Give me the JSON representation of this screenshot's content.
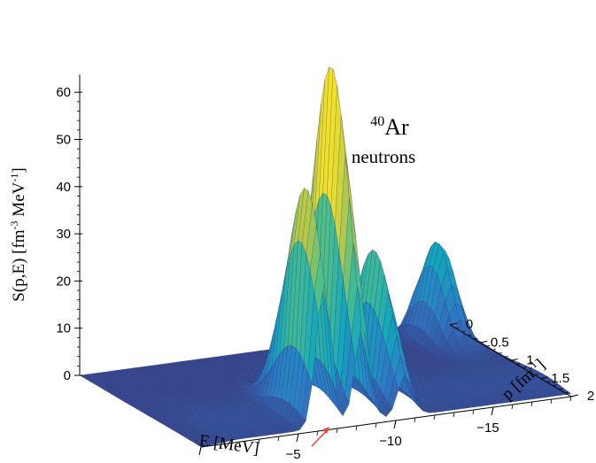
{
  "chart_data": {
    "type": "surface",
    "annotation": {
      "superscript": "40",
      "element": "Ar",
      "subtitle": "neutrons"
    },
    "xlabel": "E [MeV]",
    "ylabel": "p [fm",
    "ylabel_sup": "-1",
    "ylabel_end": "]",
    "zlabel": "S(p,E) [fm",
    "zlabel_sup1": "-3",
    "zlabel_mid": " MeV",
    "zlabel_sup2": "-1",
    "zlabel_end": "]",
    "E_ticks": [
      "0",
      "−5",
      "−10",
      "−15"
    ],
    "p_ticks": [
      "0",
      "0.5",
      "1",
      "1.5",
      "2"
    ],
    "z_ticks": [
      "0",
      "10",
      "20",
      "30",
      "40",
      "50",
      "60"
    ],
    "E_range": [
      0,
      -19
    ],
    "p_range": [
      0,
      2
    ],
    "z_range": [
      0,
      60
    ],
    "peaks": [
      {
        "E": -6.3,
        "p": 1.7,
        "height": 48
      },
      {
        "E": -8.3,
        "p": 1.5,
        "height": 72
      },
      {
        "E": -10.5,
        "p": 1.5,
        "height": 31
      },
      {
        "E": -17.5,
        "p": 0.3,
        "height": 21
      }
    ],
    "marker": {
      "E": -6.3,
      "color": "#e8483a"
    },
    "colormap": [
      "#36468f",
      "#2f78c4",
      "#15a6bd",
      "#4cbe8c",
      "#b7c94a",
      "#f0e02c"
    ]
  }
}
